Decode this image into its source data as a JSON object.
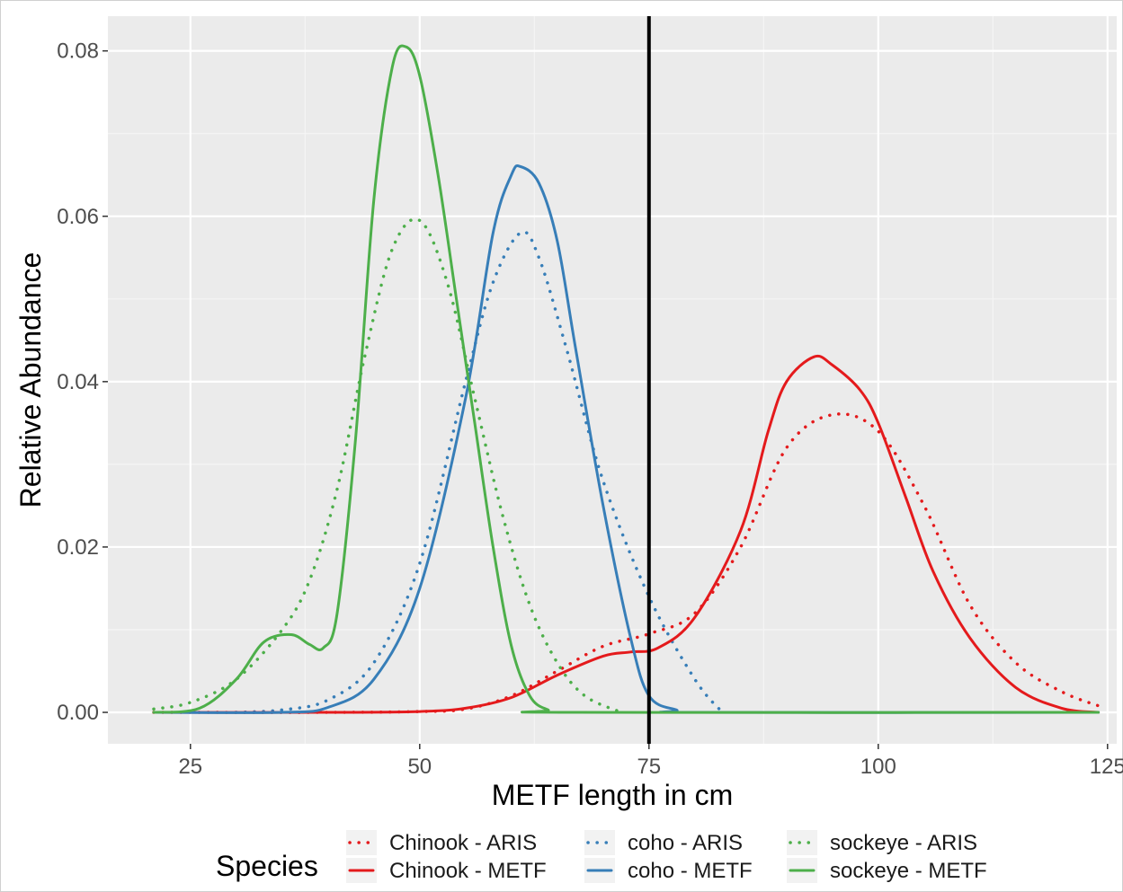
{
  "chart_data": {
    "type": "line",
    "title": "",
    "xlabel": "METF length in cm",
    "ylabel": "Relative Abundance",
    "xlim": [
      16,
      126
    ],
    "ylim": [
      -0.0038,
      0.0842
    ],
    "x_ticks": [
      25,
      50,
      75,
      100,
      125
    ],
    "y_ticks": [
      0,
      0.02,
      0.04,
      0.06,
      0.08
    ],
    "x_tick_labels": [
      "25",
      "50",
      "75",
      "100",
      "125"
    ],
    "y_tick_labels": [
      "0.00",
      "0.02",
      "0.04",
      "0.06",
      "0.08"
    ],
    "grid": true,
    "background": "#ebebeb",
    "vline": {
      "x": 75,
      "color": "#000000"
    },
    "legend": {
      "title": "Species",
      "position": "bottom",
      "layout": [
        [
          "Chinook - ARIS",
          "coho - ARIS",
          "sockeye - ARIS"
        ],
        [
          "Chinook - METF",
          "coho - METF",
          "sockeye - METF"
        ]
      ]
    },
    "series": [
      {
        "name": "Chinook - ARIS",
        "color": "#e41a1c",
        "linetype": "dotted",
        "x": [
          21,
          40,
          50,
          55,
          60,
          65,
          70,
          75,
          80,
          85,
          90,
          95,
          100,
          105,
          110,
          115,
          120,
          124
        ],
        "y": [
          0,
          0,
          0.0001,
          0.0004,
          0.002,
          0.005,
          0.008,
          0.0095,
          0.012,
          0.02,
          0.032,
          0.036,
          0.034,
          0.025,
          0.013,
          0.006,
          0.0025,
          0.0008
        ]
      },
      {
        "name": "Chinook - METF",
        "color": "#e41a1c",
        "linetype": "solid",
        "x": [
          21,
          40,
          50,
          55,
          60,
          65,
          70,
          73,
          76,
          80,
          85,
          88,
          90,
          93,
          95,
          98,
          100,
          103,
          106,
          110,
          115,
          120,
          124
        ],
        "y": [
          0,
          0,
          0.0001,
          0.0005,
          0.0018,
          0.0045,
          0.0068,
          0.0073,
          0.0078,
          0.0115,
          0.022,
          0.034,
          0.04,
          0.043,
          0.042,
          0.039,
          0.035,
          0.026,
          0.017,
          0.009,
          0.003,
          0.0005,
          0
        ]
      },
      {
        "name": "coho - ARIS",
        "color": "#377eb8",
        "linetype": "dotted",
        "x": [
          30,
          35,
          40,
          45,
          50,
          55,
          58,
          61,
          63,
          66,
          70,
          75,
          80,
          83
        ],
        "y": [
          0,
          0.0003,
          0.0015,
          0.006,
          0.018,
          0.04,
          0.052,
          0.058,
          0.055,
          0.044,
          0.028,
          0.014,
          0.004,
          0
        ]
      },
      {
        "name": "coho - METF",
        "color": "#377eb8",
        "linetype": "solid",
        "x": [
          21,
          35,
          40,
          45,
          50,
          55,
          58,
          60,
          61,
          63,
          65,
          67,
          70,
          73,
          75,
          78,
          80,
          124
        ],
        "y": [
          0,
          0,
          0.0006,
          0.004,
          0.015,
          0.038,
          0.058,
          0.065,
          0.066,
          0.064,
          0.057,
          0.044,
          0.025,
          0.009,
          0.002,
          0.0003,
          0,
          0
        ]
      },
      {
        "name": "sockeye - ARIS",
        "color": "#4daf4a",
        "linetype": "dotted",
        "x": [
          21,
          25,
          30,
          35,
          38,
          41,
          44,
          47,
          50,
          53,
          56,
          59,
          62,
          65,
          68,
          72
        ],
        "y": [
          0.0004,
          0.0012,
          0.004,
          0.01,
          0.016,
          0.027,
          0.043,
          0.056,
          0.0595,
          0.052,
          0.038,
          0.024,
          0.013,
          0.006,
          0.002,
          0
        ]
      },
      {
        "name": "sockeye - METF",
        "color": "#4daf4a",
        "linetype": "solid",
        "x": [
          21,
          26,
          30,
          33,
          36,
          38,
          39.5,
          41,
          43,
          45,
          47,
          48.5,
          50,
          52,
          54,
          56,
          58,
          60,
          62,
          64,
          66,
          124
        ],
        "y": [
          0,
          0.0005,
          0.004,
          0.0085,
          0.0094,
          0.0082,
          0.0078,
          0.012,
          0.033,
          0.062,
          0.078,
          0.0805,
          0.077,
          0.065,
          0.05,
          0.035,
          0.02,
          0.008,
          0.002,
          0.0003,
          0,
          0
        ]
      }
    ]
  }
}
